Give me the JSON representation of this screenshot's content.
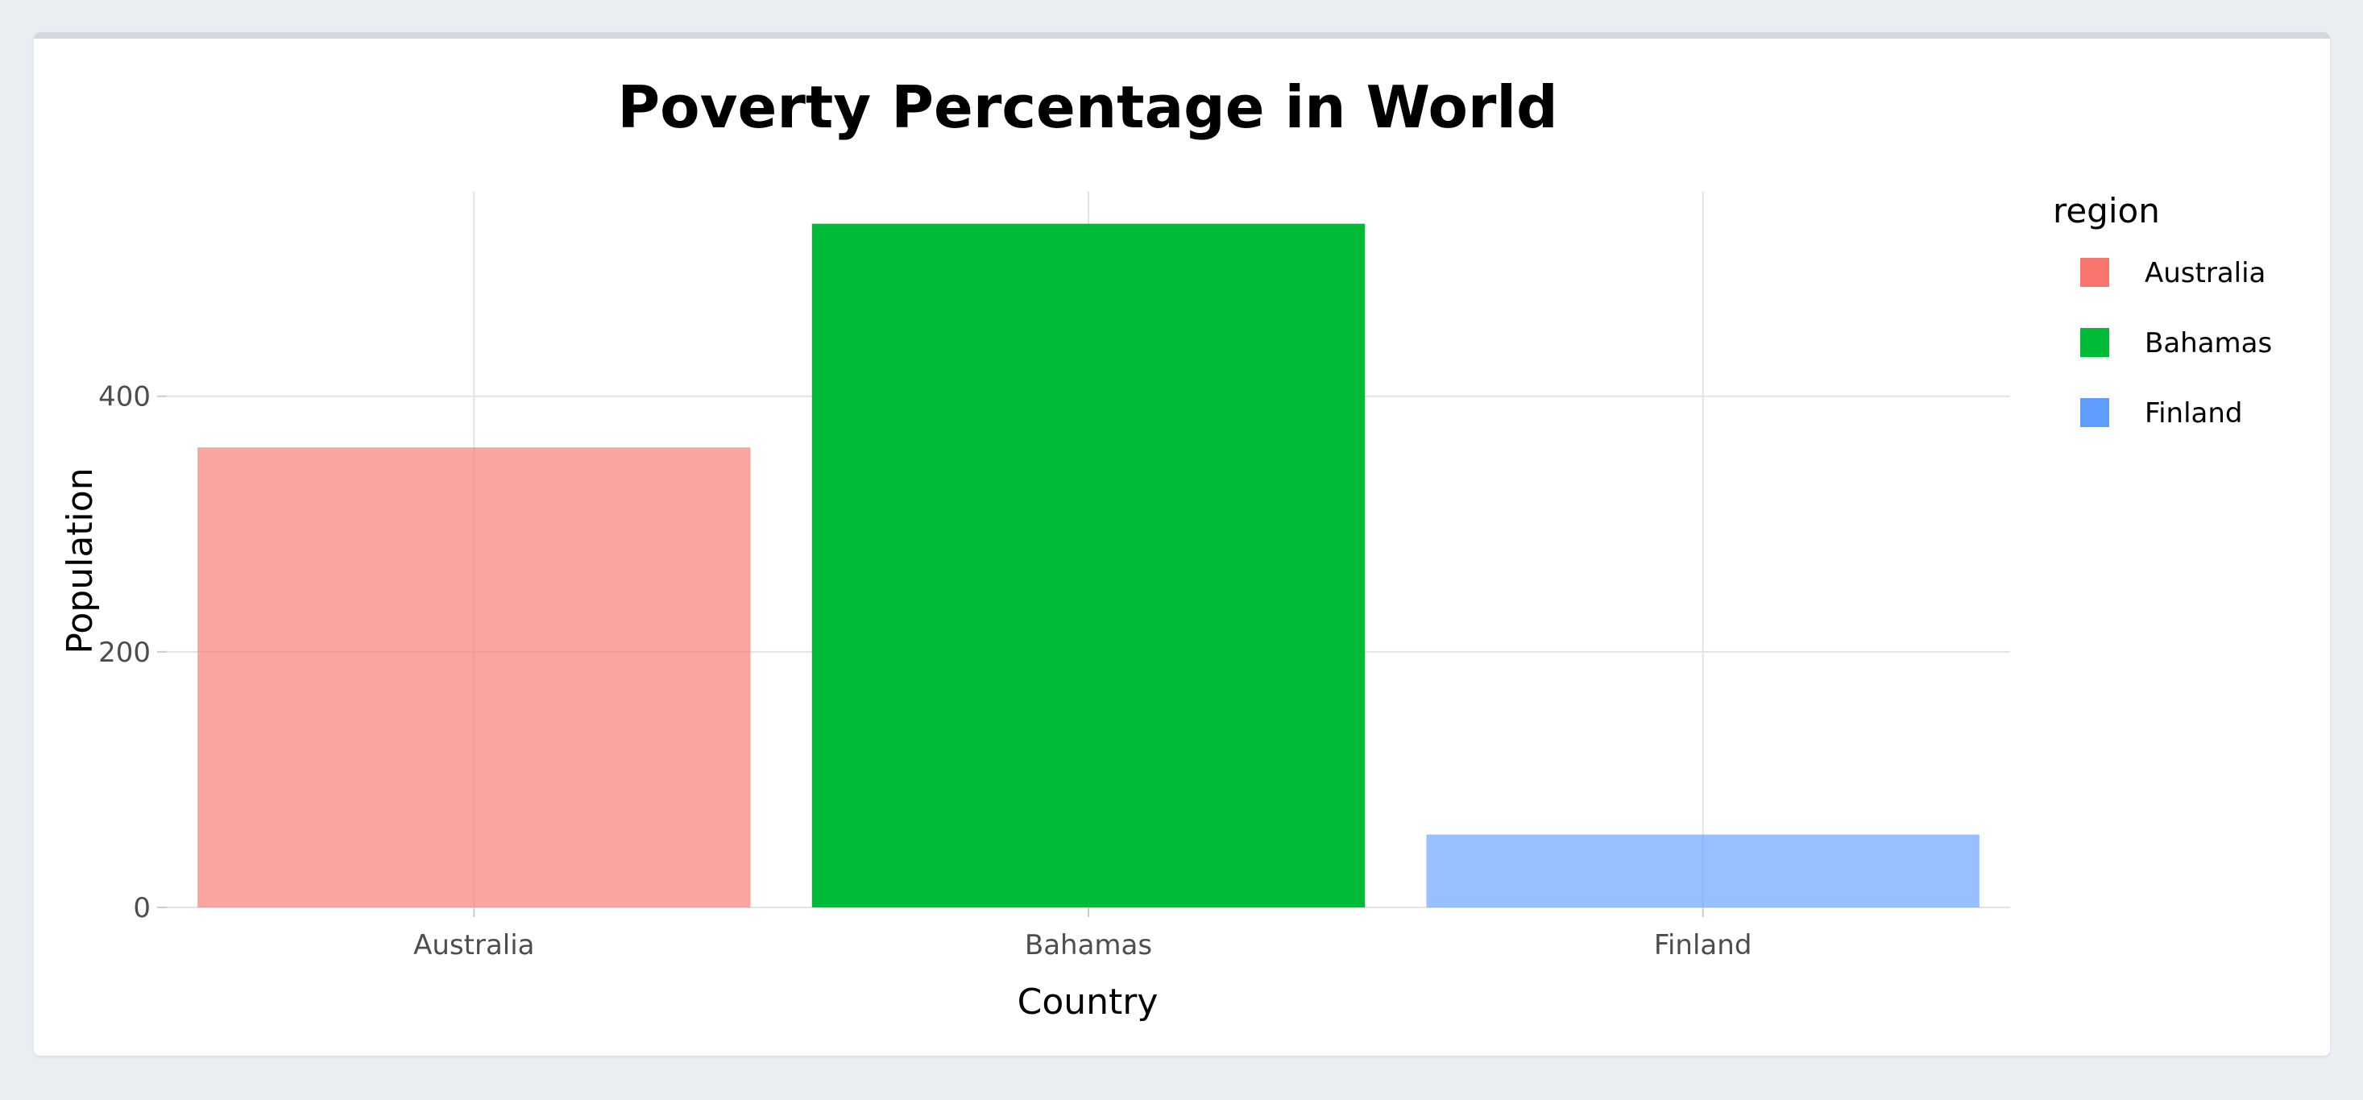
{
  "chart_data": {
    "type": "bar",
    "title": "Poverty Percentage in World",
    "xlabel": "Country",
    "ylabel": "Population",
    "categories": [
      "Australia",
      "Bahamas",
      "Finland"
    ],
    "values": [
      360,
      535,
      57
    ],
    "ylim": [
      0,
      560
    ],
    "yticks": [
      0,
      200,
      400
    ],
    "colors": [
      "#f8766d",
      "#00ba38",
      "#619cff"
    ],
    "grid": true,
    "legend": {
      "title": "region",
      "position": "right",
      "items": [
        "Australia",
        "Bahamas",
        "Finland"
      ]
    }
  }
}
